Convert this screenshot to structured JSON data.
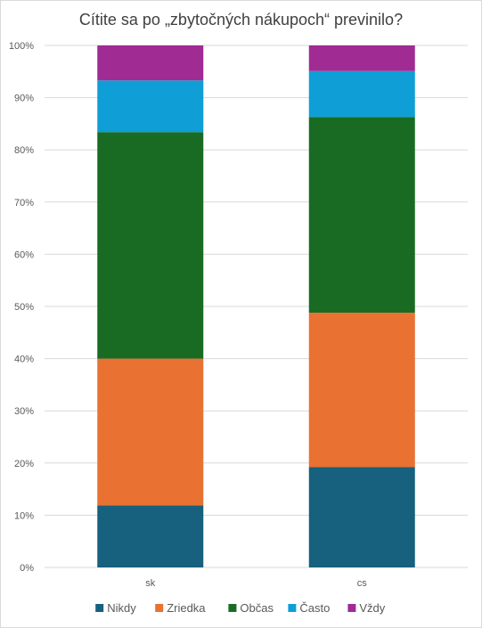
{
  "chart_data": {
    "type": "bar",
    "stacked": true,
    "title": "Cítite sa po „zbytočných nákupoch“ previnilo?",
    "categories": [
      "sk",
      "cs"
    ],
    "series": [
      {
        "name": "Nikdy",
        "values": [
          11.9,
          19.2
        ],
        "color": "#17607e"
      },
      {
        "name": "Zriedka",
        "values": [
          28.1,
          29.6
        ],
        "color": "#e97132"
      },
      {
        "name": "Občas",
        "values": [
          43.4,
          37.5
        ],
        "color": "#196b24"
      },
      {
        "name": "Často",
        "values": [
          9.9,
          8.8
        ],
        "color": "#0f9ed5"
      },
      {
        "name": "Vždy",
        "values": [
          6.7,
          4.9
        ],
        "color": "#a02b93"
      }
    ],
    "yticks": [
      "0%",
      "10%",
      "20%",
      "30%",
      "40%",
      "50%",
      "60%",
      "70%",
      "80%",
      "90%",
      "100%"
    ],
    "ylim": [
      0,
      100
    ],
    "grid": true,
    "legend_position": "bottom"
  }
}
